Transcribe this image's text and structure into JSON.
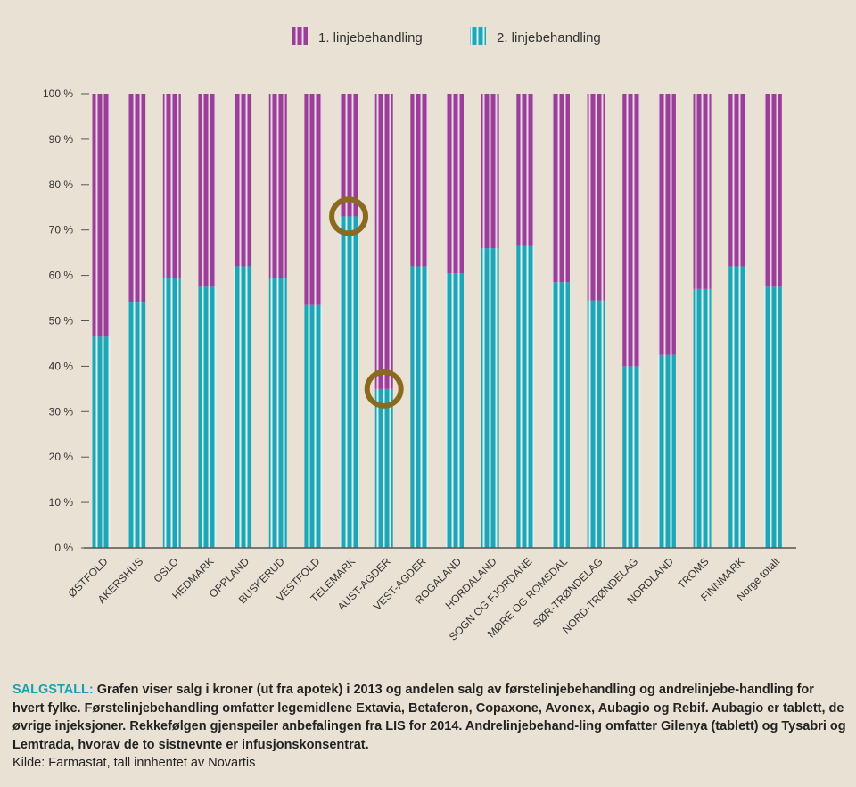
{
  "chart_data": {
    "type": "stacked-bar-percent",
    "legend_position": "top-center",
    "ylim": [
      0,
      100
    ],
    "y_ticks": [
      "0 %",
      "10 %",
      "20 %",
      "30 %",
      "40 %",
      "50 %",
      "60 %",
      "70 %",
      "80 %",
      "90 %",
      "100 %"
    ],
    "categories": [
      "ØSTFOLD",
      "AKERSHUS",
      "OSLO",
      "HEDMARK",
      "OPPLAND",
      "BUSKERUD",
      "VESTFOLD",
      "TELEMARK",
      "AUST-AGDER",
      "VEST-AGDER",
      "ROGALAND",
      "HORDALAND",
      "SOGN OG FJORDANE",
      "MØRE OG ROMSDAL",
      "SØR-TRØNDELAG",
      "NORD-TRØNDELAG",
      "NORDLAND",
      "TROMS",
      "FINNMARK",
      "Norge totalt"
    ],
    "series": [
      {
        "name": "2. linjebehandling",
        "color": "#1fa6b6",
        "values": [
          46.5,
          54,
          59.5,
          57.5,
          62,
          59.5,
          53.5,
          73,
          35,
          62,
          60.5,
          66,
          66.5,
          58.5,
          54.5,
          40,
          42.5,
          57,
          62,
          57.5
        ]
      },
      {
        "name": "1. linjebehandling",
        "color": "#9b3e96",
        "values": [
          53.5,
          46,
          40.5,
          42.5,
          38,
          40.5,
          46.5,
          27,
          65,
          38,
          39.5,
          34,
          33.5,
          41.5,
          45.5,
          60,
          57.5,
          43,
          38,
          42.5
        ]
      }
    ],
    "highlights": [
      {
        "category": "TELEMARK",
        "value": 73
      },
      {
        "category": "AUST-AGDER",
        "value": 35
      }
    ]
  },
  "legend": {
    "first": "1. linjebehandling",
    "second": "2. linjebehandling"
  },
  "caption": {
    "lead": "SALGSTALL:",
    "text": "Grafen viser salg i kroner (ut fra apotek) i 2013 og andelen salg av førstelinjebehandling og andrelinjebe-handling for hvert fylke. Førstelinjebehandling omfatter legemidlene Extavia, Betaferon, Copaxone, Avonex, Aubagio og Rebif. Aubagio er tablett, de øvrige injeksjoner. Rekkefølgen gjenspeiler anbefalingen fra LIS for 2014. Andrelinjebehand-ling omfatter Gilenya (tablett) og Tysabri og Lemtrada, hvorav de to sistnevnte er infusjonskonsentrat.",
    "source": "Kilde: Farmastat, tall innhentet av Novartis"
  },
  "colors": {
    "background": "#e9e2d4",
    "first_line": "#9b3e96",
    "second_line": "#1fa6b6",
    "highlight_ring": "#8a6a1e",
    "axis": "#555555",
    "caption_lead": "#1a9fb0"
  }
}
